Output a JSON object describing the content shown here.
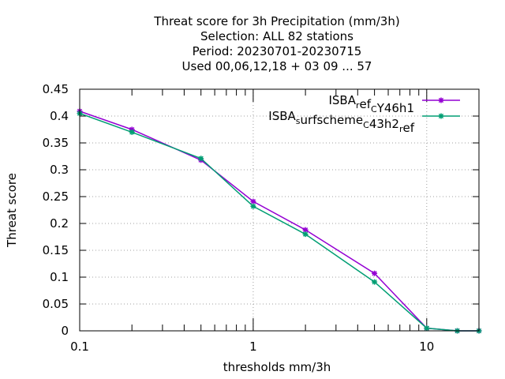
{
  "chart_data": {
    "type": "line",
    "title_lines": [
      "Threat score  for 3h Precipitation (mm/3h)",
      "Selection: ALL     82 stations",
      "Period: 20230701-20230715",
      "Used  00,06,12,18 + 03 09 ... 57"
    ],
    "xlabel": "thresholds mm/3h",
    "ylabel": "Threat score",
    "x_scale": "log",
    "xlim": [
      0.1,
      20
    ],
    "ylim": [
      0,
      0.45
    ],
    "x_ticks_labeled": [
      {
        "value": 0.1,
        "label": "0.1"
      },
      {
        "value": 1,
        "label": "1"
      },
      {
        "value": 10,
        "label": "10"
      }
    ],
    "y_ticks": [
      {
        "value": 0,
        "label": "0"
      },
      {
        "value": 0.05,
        "label": "0.05"
      },
      {
        "value": 0.1,
        "label": "0.1"
      },
      {
        "value": 0.15,
        "label": "0.15"
      },
      {
        "value": 0.2,
        "label": "0.2"
      },
      {
        "value": 0.25,
        "label": "0.25"
      },
      {
        "value": 0.3,
        "label": "0.3"
      },
      {
        "value": 0.35,
        "label": "0.35"
      },
      {
        "value": 0.4,
        "label": "0.4"
      },
      {
        "value": 0.45,
        "label": "0.45"
      }
    ],
    "grid": true,
    "legend_position": "top-right",
    "series": [
      {
        "legend_parts": [
          [
            "ISBA",
            ""
          ],
          [
            "r",
            "sub"
          ],
          [
            "ef",
            ""
          ],
          [
            "C",
            "sub"
          ],
          [
            "Y46h1",
            ""
          ]
        ],
        "color": "#9400d3",
        "x": [
          0.1,
          0.2,
          0.5,
          1,
          2,
          5,
          10,
          15,
          20
        ],
        "y": [
          0.409,
          0.375,
          0.318,
          0.241,
          0.188,
          0.107,
          0.005,
          0.0,
          0.0
        ]
      },
      {
        "legend_parts": [
          [
            "ISBA",
            ""
          ],
          [
            "s",
            "sub"
          ],
          [
            "urfscheme",
            ""
          ],
          [
            "C",
            "sub"
          ],
          [
            "43h2",
            ""
          ],
          [
            "r",
            "sub"
          ],
          [
            "ef",
            ""
          ]
        ],
        "color": "#009e73",
        "x": [
          0.1,
          0.2,
          0.5,
          1,
          2,
          5,
          10,
          15,
          20
        ],
        "y": [
          0.405,
          0.37,
          0.321,
          0.232,
          0.18,
          0.091,
          0.005,
          0.0,
          0.0
        ]
      }
    ]
  }
}
